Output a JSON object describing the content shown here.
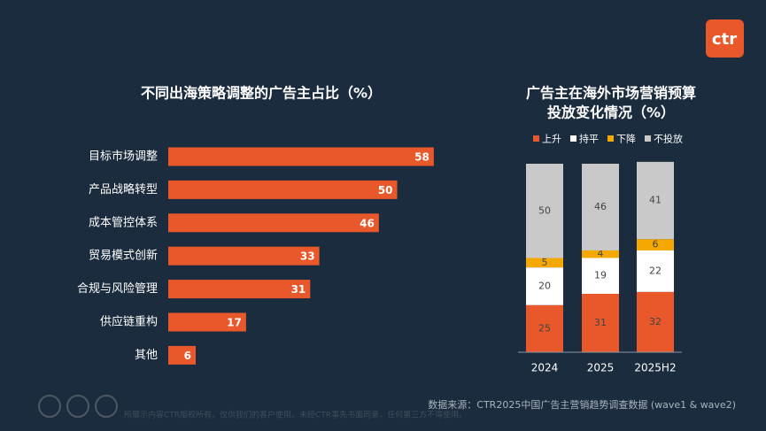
{
  "logo": "ctr",
  "chart_data": [
    {
      "type": "hbar",
      "title": "不同出海策略调整的广告主占比（%）",
      "categories": [
        "目标市场调整",
        "产品战略转型",
        "成本管控体系",
        "贸易模式创新",
        "合规与风险管理",
        "供应链重构",
        "其他"
      ],
      "values": [
        58,
        50,
        46,
        33,
        31,
        17,
        6
      ],
      "color": "#e8582a"
    },
    {
      "type": "stacked_bar",
      "title": [
        "广告主在海外市场营销预算",
        "投放变化情况（%）"
      ],
      "categories": [
        "2024",
        "2025",
        "2025H2"
      ],
      "series": [
        {
          "name": "上升",
          "color": "#e8582a",
          "values": [
            25,
            31,
            32
          ]
        },
        {
          "name": "持平",
          "color": "#ffffff",
          "values": [
            20,
            19,
            22
          ]
        },
        {
          "name": "下降",
          "color": "#f5a800",
          "values": [
            5,
            4,
            6
          ]
        },
        {
          "name": "不投放",
          "color": "#c9c9c9",
          "values": [
            50,
            46,
            41
          ]
        }
      ]
    }
  ],
  "source": "数据来源：CTR2025中国广告主营销趋势调查数据 (wave1 & wave2)",
  "disclaimer": "所展示内容CTR版权所有，仅供我们的客户使用。未经CTR事先书面同意，任何第三方不得使用。"
}
